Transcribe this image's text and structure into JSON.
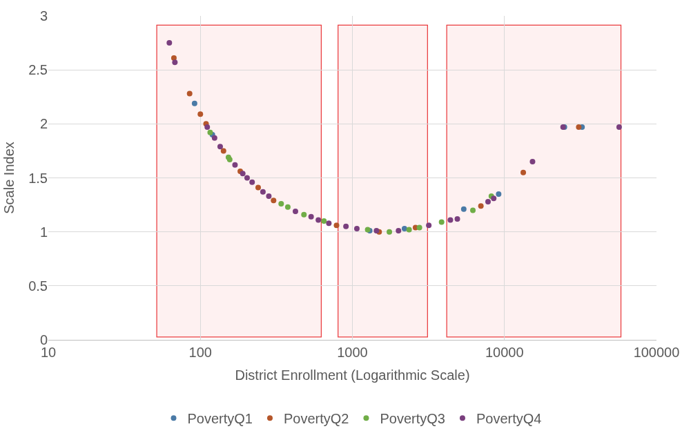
{
  "chart_data": {
    "type": "scatter",
    "xlabel": "District Enrollment (Logarithmic Scale)",
    "ylabel": "Scale Index",
    "log": "x",
    "xlim": [
      10,
      100000
    ],
    "xticks": [
      10,
      100,
      1000,
      10000,
      100000
    ],
    "ylim": [
      0,
      3
    ],
    "yticks": [
      0,
      0.5,
      1,
      1.5,
      2,
      2.5,
      3
    ],
    "grid": true,
    "legend": "bottom",
    "marker": "circle",
    "bands": [
      {
        "axis": "x",
        "from": 52,
        "to": 620,
        "color": "#e8262a"
      },
      {
        "axis": "x",
        "from": 810,
        "to": 3100,
        "color": "#e8262a"
      },
      {
        "axis": "x",
        "from": 4200,
        "to": 58000,
        "color": "#e8262a"
      }
    ],
    "series": [
      {
        "name": "PovertyQ1",
        "color": "#4a7aa6",
        "x": [
          91.6,
          120,
          1300,
          2200,
          5400,
          9160,
          24800,
          32400
        ],
        "values": [
          2.19,
          1.9,
          1.01,
          1.03,
          1.21,
          1.35,
          1.97,
          1.97
        ]
      },
      {
        "name": "PovertyQ2",
        "color": "#b5562a",
        "x": [
          67,
          85,
          100,
          109,
          142,
          183,
          240,
          303,
          786,
          1500,
          2600,
          7000,
          13300,
          30800
        ],
        "values": [
          2.61,
          2.28,
          2.09,
          2.0,
          1.75,
          1.56,
          1.41,
          1.29,
          1.06,
          1.0,
          1.04,
          1.24,
          1.55,
          1.97
        ]
      },
      {
        "name": "PovertyQ3",
        "color": "#70ad47",
        "x": [
          116,
          153,
          156,
          340,
          376,
          480,
          650,
          1260,
          1750,
          2360,
          2760,
          3860,
          6200,
          8200
        ],
        "values": [
          1.92,
          1.69,
          1.67,
          1.26,
          1.23,
          1.16,
          1.1,
          1.02,
          1.0,
          1.02,
          1.04,
          1.09,
          1.2,
          1.33
        ]
      },
      {
        "name": "PovertyQ4",
        "color": "#7a3f7e",
        "x": [
          62.5,
          68,
          111,
          124,
          135,
          169,
          190,
          203,
          219,
          258,
          282,
          422,
          535,
          597,
          700,
          907,
          1070,
          1440,
          2010,
          3180,
          4410,
          4900,
          7800,
          8500,
          15300,
          24300,
          56800
        ],
        "values": [
          2.75,
          2.57,
          1.97,
          1.87,
          1.79,
          1.62,
          1.54,
          1.5,
          1.46,
          1.37,
          1.33,
          1.19,
          1.14,
          1.11,
          1.08,
          1.05,
          1.03,
          1.01,
          1.01,
          1.06,
          1.11,
          1.12,
          1.28,
          1.31,
          1.65,
          1.97,
          1.97
        ]
      }
    ]
  }
}
